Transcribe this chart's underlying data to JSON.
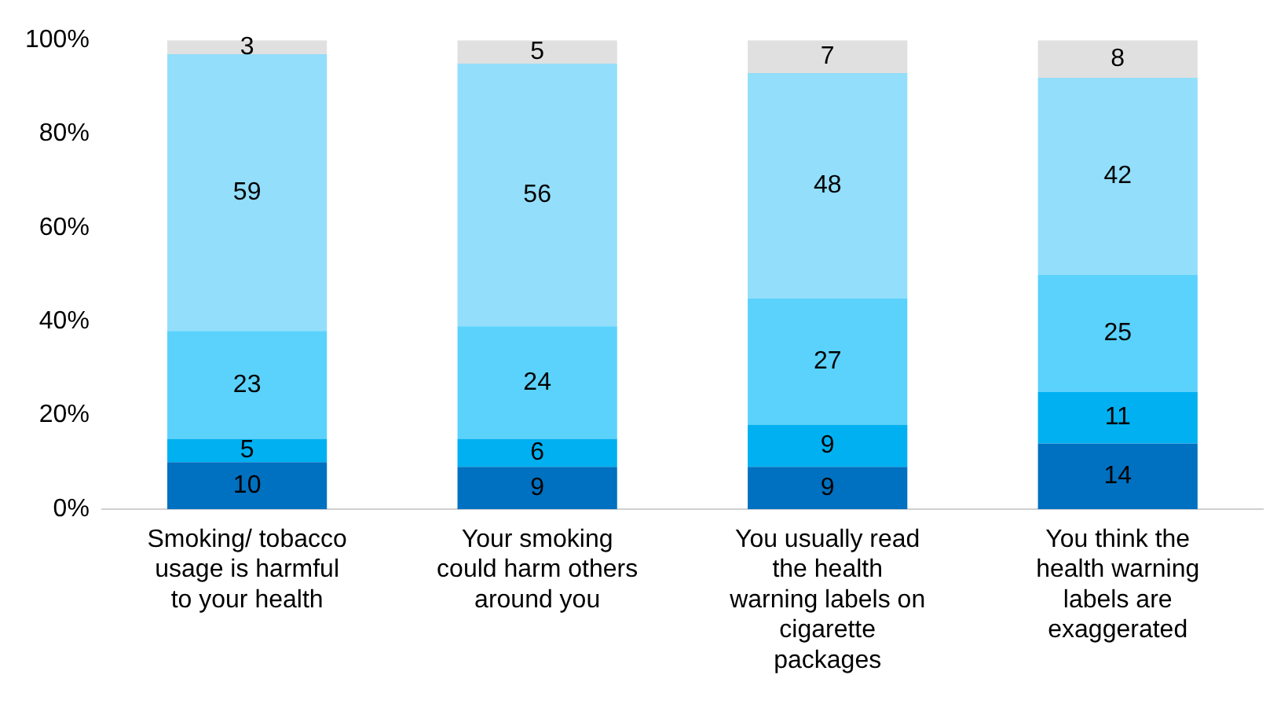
{
  "chart_data": {
    "type": "bar",
    "stacked": true,
    "data_labels": true,
    "categories": [
      "Smoking/ tobacco usage is harmful to your health",
      "Your smoking could harm others around you",
      "You usually read the health warning labels on cigarette packages",
      "You think the health warning labels are exaggerated"
    ],
    "series": [
      {
        "color": "#0070c0",
        "values": [
          10,
          9,
          9,
          14
        ]
      },
      {
        "color": "#00b0f0",
        "values": [
          5,
          6,
          9,
          11
        ]
      },
      {
        "color": "#5ad2fc",
        "values": [
          23,
          24,
          27,
          25
        ]
      },
      {
        "color": "#92defb",
        "values": [
          59,
          56,
          48,
          42
        ]
      },
      {
        "color": "#e0e0e0",
        "values": [
          3,
          5,
          7,
          8
        ]
      }
    ],
    "ylim": [
      0,
      100
    ],
    "yticks": [
      {
        "value": 0,
        "label": "0%"
      },
      {
        "value": 20,
        "label": "20%"
      },
      {
        "value": 40,
        "label": "40%"
      },
      {
        "value": 60,
        "label": "60%"
      },
      {
        "value": 80,
        "label": "80%"
      },
      {
        "value": 100,
        "label": "100%"
      }
    ],
    "grid": false
  }
}
